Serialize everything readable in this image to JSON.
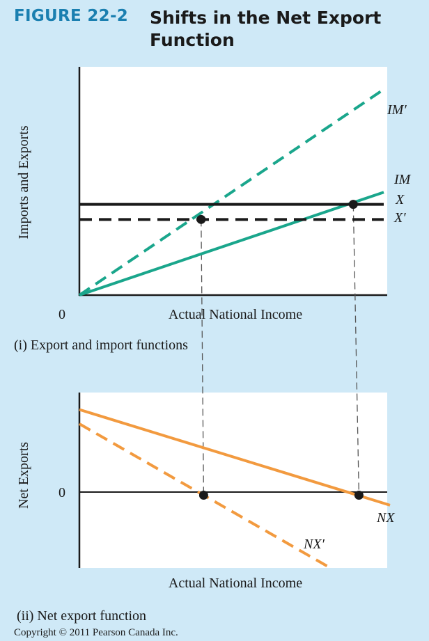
{
  "header": {
    "figure_label": "FIGURE 22-2",
    "title": "Shifts in the Net Export Function"
  },
  "colors": {
    "green": "#1aa68c",
    "orange": "#f29a3f",
    "black": "#1a1a1a",
    "panel_bg": "#ffffff",
    "page_bg": "#cfe9f7"
  },
  "chart_data": [
    {
      "type": "line",
      "caption": "(i) Export and import functions",
      "xlabel": "Actual National Income",
      "ylabel": "Imports and Exports",
      "x_tick_labels": [
        "0"
      ],
      "series": [
        {
          "name": "IM′",
          "style": "dashed",
          "color": "#1aa68c",
          "points": [
            [
              0,
              0
            ],
            [
              10,
              6.8
            ]
          ]
        },
        {
          "name": "IM",
          "style": "solid",
          "color": "#1aa68c",
          "points": [
            [
              0,
              0
            ],
            [
              10,
              3.4
            ]
          ]
        },
        {
          "name": "X",
          "style": "solid",
          "color": "#1a1a1a",
          "points": [
            [
              0,
              3.0
            ],
            [
              10,
              3.0
            ]
          ]
        },
        {
          "name": "X′",
          "style": "dashed",
          "color": "#1a1a1a",
          "points": [
            [
              0,
              2.5
            ],
            [
              10,
              2.5
            ]
          ]
        }
      ],
      "markers": [
        [
          4,
          2.5
        ],
        [
          9,
          3.0
        ]
      ],
      "xlim": [
        0,
        10
      ],
      "ylim": [
        0,
        7.5
      ]
    },
    {
      "type": "line",
      "caption": "(ii) Net export function",
      "xlabel": "Actual National Income",
      "ylabel": "Net Exports",
      "y_tick_labels": [
        "0"
      ],
      "series": [
        {
          "name": "NX",
          "style": "solid",
          "color": "#f29a3f",
          "points": [
            [
              0,
              3.0
            ],
            [
              10,
              -0.35
            ]
          ]
        },
        {
          "name": "NX′",
          "style": "dashed",
          "color": "#f29a3f",
          "points": [
            [
              0,
              2.5
            ],
            [
              8,
              -2.5
            ]
          ]
        }
      ],
      "markers": [
        [
          4,
          0
        ],
        [
          9,
          0
        ]
      ],
      "xlim": [
        0,
        10
      ],
      "ylim": [
        -2.5,
        3.5
      ]
    }
  ],
  "footer": {
    "copyright": "Copyright © 2011 Pearson Canada Inc."
  }
}
